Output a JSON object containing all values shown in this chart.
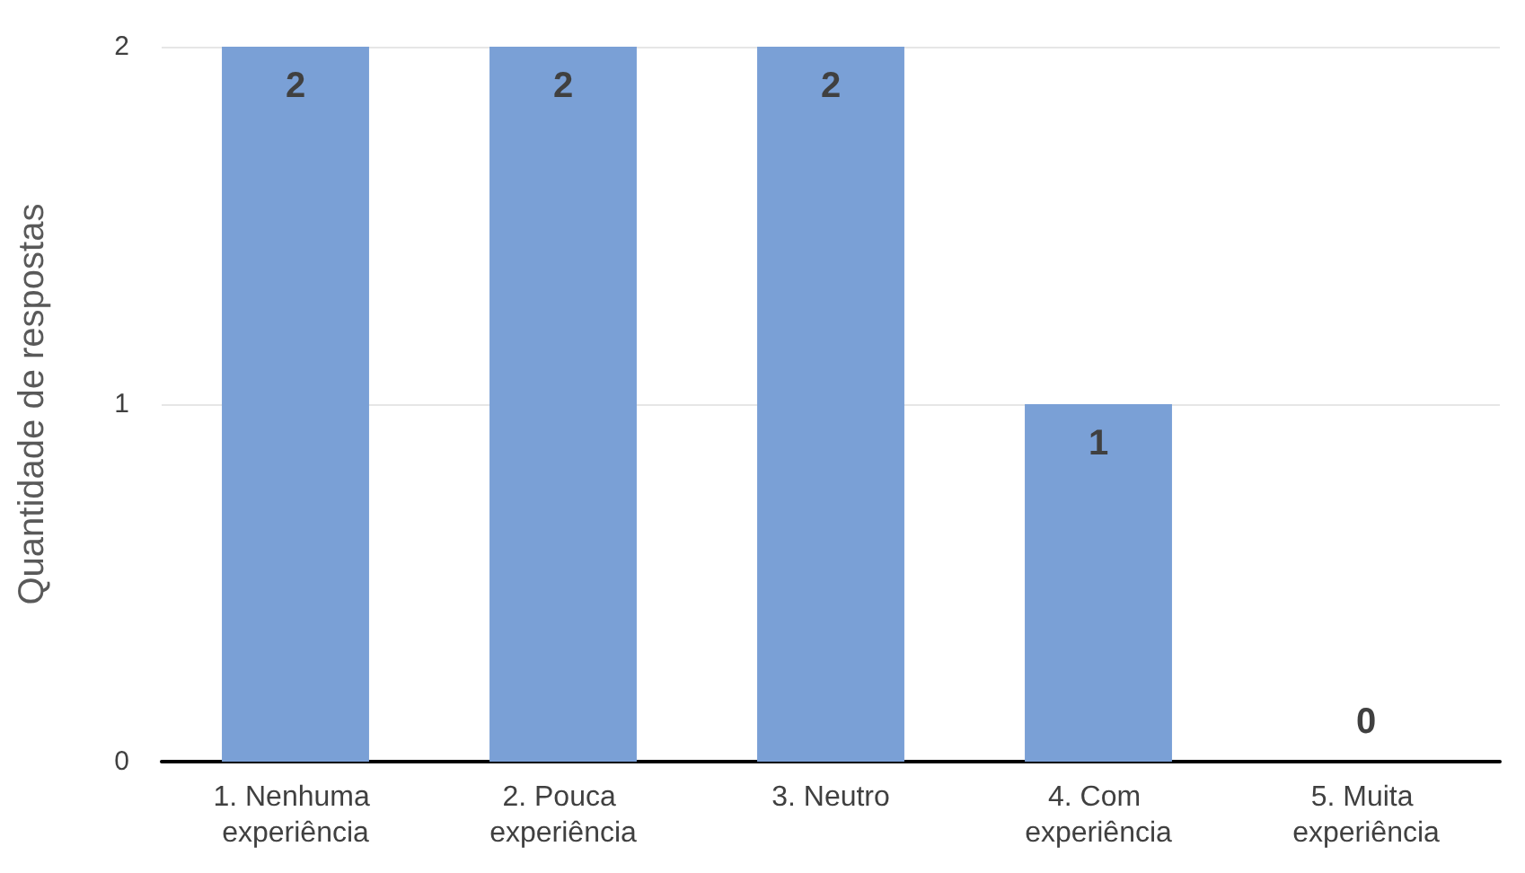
{
  "chart_data": {
    "type": "bar",
    "ylabel": "Quantidade de respostas",
    "categories": [
      "1. Nenhuma experiência",
      "2. Pouca experiência",
      "3. Neutro",
      "4. Com experiência",
      "5. Muita experiência"
    ],
    "values": [
      2,
      2,
      2,
      1,
      0
    ],
    "color": "#7aa0d6",
    "ylim": [
      0,
      2
    ],
    "yticks": [
      0,
      1,
      2
    ],
    "grid": "y",
    "data_labels": true
  }
}
